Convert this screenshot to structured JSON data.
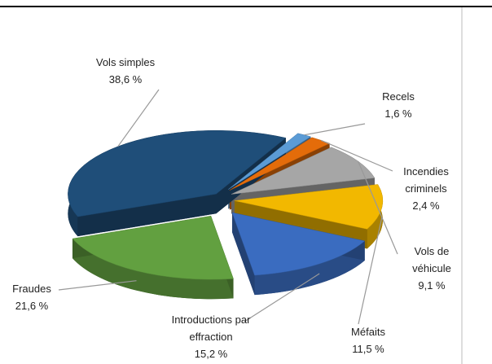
{
  "chart_data": {
    "type": "pie",
    "categories": [
      "Recels",
      "Incendies criminels",
      "Vols de véhicule",
      "Méfaits",
      "Introductions par effraction",
      "Fraudes",
      "Vols simples"
    ],
    "values": [
      1.6,
      2.4,
      9.1,
      11.5,
      15.2,
      21.6,
      38.6
    ],
    "value_labels": [
      "1,6 %",
      "2,4 %",
      "9,1 %",
      "11,5 %",
      "15,2 %",
      "21,6 %",
      "38,6 %"
    ],
    "colors": [
      "#5b9bd5",
      "#e46c0a",
      "#a6a6a6",
      "#f2b800",
      "#3a6cc0",
      "#62a040",
      "#1f4e79"
    ]
  }
}
